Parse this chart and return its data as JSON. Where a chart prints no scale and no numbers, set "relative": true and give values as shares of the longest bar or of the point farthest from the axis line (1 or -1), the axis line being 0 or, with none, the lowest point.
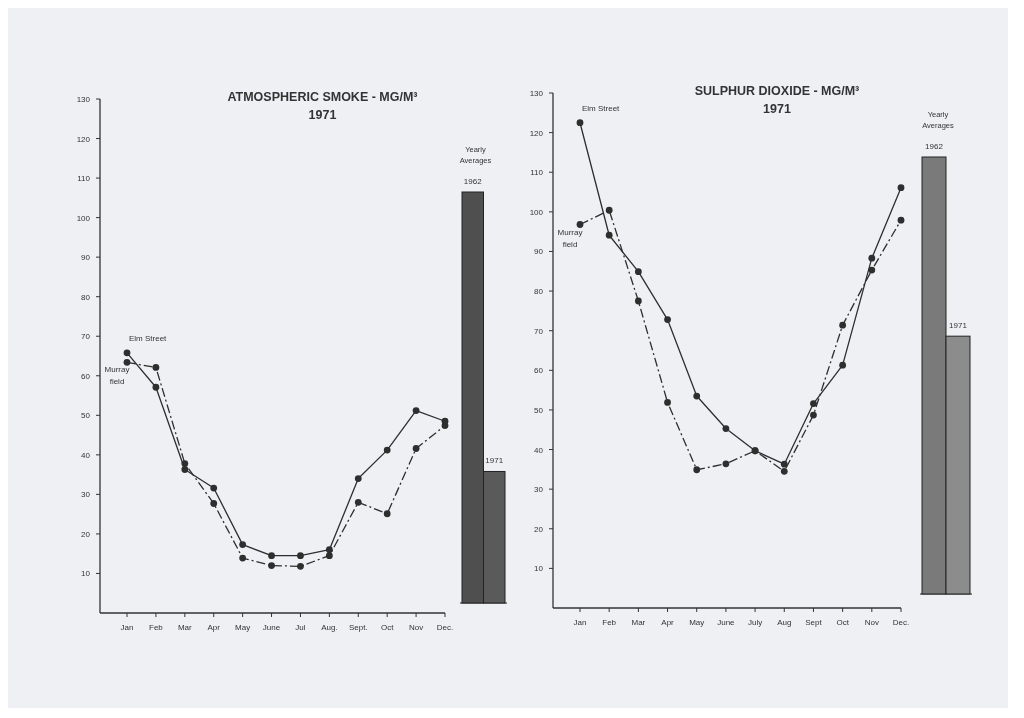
{
  "chart_data": [
    {
      "type": "line",
      "title": "ATMOSPHERIC SMOKE - MG/M³",
      "subtitle": "1971",
      "categories": [
        "Jan",
        "Feb",
        "Mar",
        "Apr",
        "May",
        "June",
        "Jul",
        "Aug.",
        "Sept.",
        "Oct",
        "Nov",
        "Dec."
      ],
      "ylim": [
        0,
        130
      ],
      "yticks": [
        10,
        20,
        30,
        40,
        50,
        60,
        70,
        80,
        90,
        100,
        110,
        120,
        130
      ],
      "marker": "circle",
      "series": [
        {
          "name": "Elm Street",
          "color": "#2e2e2e",
          "line_style": "solid",
          "values": [
            65.8,
            57.1,
            36.3,
            31.6,
            17.3,
            14.5,
            14.5,
            16,
            34,
            41.2,
            51.2,
            48.5
          ]
        },
        {
          "name": "Murray field",
          "color": "#2e2e2e",
          "line_style": "dashed",
          "values": [
            63.4,
            62.1,
            37.8,
            27.7,
            13.9,
            12,
            11.8,
            14.5,
            28,
            25.1,
            41.6,
            47.4
          ]
        }
      ]
    },
    {
      "type": "bar",
      "title": "Yearly Averages",
      "relative": true,
      "categories": [
        "1962",
        "1971"
      ],
      "values": [
        1,
        0.32
      ],
      "colors": [
        "#4f4f4f",
        "#5a5a5a"
      ]
    },
    {
      "type": "line",
      "title": "SULPHUR DIOXIDE - MG/M³",
      "subtitle": "1971",
      "categories": [
        "Jan",
        "Feb",
        "Mar",
        "Apr",
        "May",
        "June",
        "July",
        "Aug",
        "Sept",
        "Oct",
        "Nov",
        "Dec."
      ],
      "ylim": [
        0,
        130
      ],
      "yticks": [
        10,
        20,
        30,
        40,
        50,
        60,
        70,
        80,
        90,
        100,
        110,
        120,
        130
      ],
      "marker": "circle",
      "series": [
        {
          "name": "Elm Street",
          "color": "#2e2e2e",
          "line_style": "solid",
          "values": [
            122.5,
            94.1,
            84.9,
            72.8,
            53.5,
            45.3,
            39.7,
            36.3,
            51.6,
            61.3,
            88.3,
            106.1
          ]
        },
        {
          "name": "Murray field",
          "color": "#2e2e2e",
          "line_style": "dashed",
          "values": [
            96.8,
            100.4,
            77.5,
            51.9,
            34.9,
            36.4,
            39.7,
            34.5,
            48.7,
            71.4,
            85.3,
            97.9
          ]
        }
      ]
    },
    {
      "type": "bar",
      "title": "Yearly Averages",
      "relative": true,
      "categories": [
        "1962",
        "1971"
      ],
      "values": [
        1,
        0.59
      ],
      "colors": [
        "#7a7a7a",
        "#8c8c8c"
      ]
    }
  ]
}
